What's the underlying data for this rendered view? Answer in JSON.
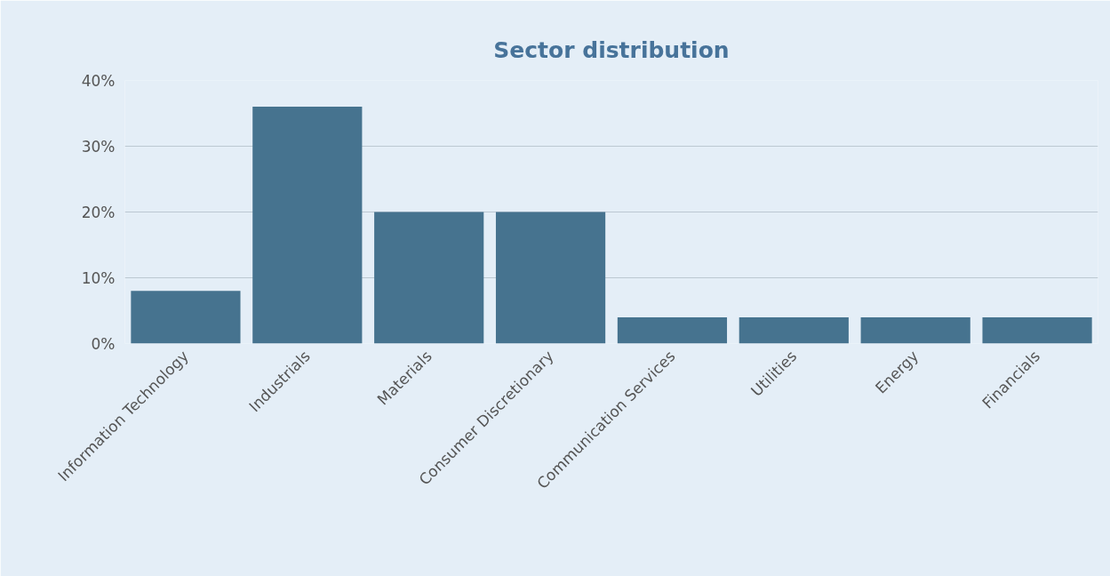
{
  "chart_data": {
    "type": "bar",
    "title": "Sector distribution",
    "categories": [
      "Information Technology",
      "Industrials",
      "Materials",
      "Consumer Discretionary",
      "Communication Services",
      "Utilities",
      "Energy",
      "Financials"
    ],
    "values": [
      8,
      36,
      20,
      20,
      4,
      4,
      4,
      4
    ],
    "color": "#46738f",
    "ylim": [
      0,
      40
    ],
    "yticks": [
      {
        "value": 0,
        "label": "0%"
      },
      {
        "value": 10,
        "label": "10%"
      },
      {
        "value": 20,
        "label": "20%"
      },
      {
        "value": 30,
        "label": "30%"
      },
      {
        "value": 40,
        "label": "40%"
      }
    ],
    "grid": "y"
  }
}
